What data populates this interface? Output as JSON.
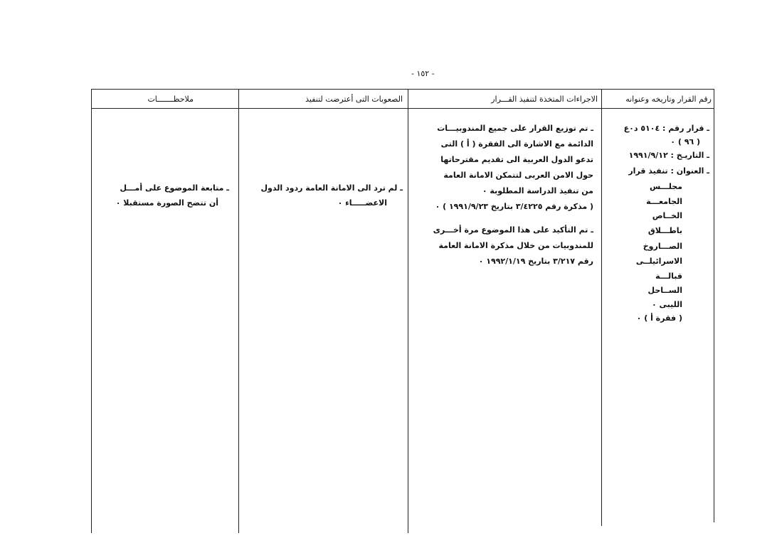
{
  "page_number": "- ١٥٢ -",
  "table": {
    "headers": [
      "رقم القرار وتاريخه وعنوانه",
      "الاجراءات المتخذة لتنفيذ القـــرار",
      "الصعوبات التى أعترضت لتنفيذ",
      "ملاحظـــــــات"
    ],
    "decision": [
      "ـ قرار رقم : ٥١٠٤ د٠ع",
      "( ٩٦ ) ٠",
      "ـ التاريـخ : ١٩٩١/٩/١٢",
      "ـ العنوان : تنفيذ قرار",
      "مجلـــس",
      "الجامعـــة",
      "الخــاص",
      "باطـــلاق",
      "الصـــاروخ",
      "الاسرائيلــى",
      "قبالـــة",
      "الســاحل",
      "الليبى ٠",
      "( فقرة أ ) ٠"
    ],
    "actions_1": [
      "ـ تم توزيع القرار على جميع المندوبيـــات",
      "الدائمة مع الاشارة الى الفقرة ( أ ) التى",
      "تدعو الدول العربية الى تقديم مقترحاتها",
      "حول الامن العربى لتتمكن الامانة العامة",
      "من تنفيذ الدراسة المطلوبة ٠",
      "( مذكرة رقم ٣/٤٢٢٥ بتاريخ ١٩٩١/٩/٢٣ ) ٠"
    ],
    "actions_2": [
      "ـ تم التأكيد على هذا الموضوع مرة أخـــرى",
      "للمندوبيات من خلال مذكرة الامانة العامة",
      "رقم ٣/٢١٧ بتاريخ ١٩٩٢/١/١٩ ٠"
    ],
    "difficulties": [
      "ـ لم ترد الى الامانة العامة ردود الدول",
      "الاعضـــــاء ٠"
    ],
    "notes": [
      "ـ متابعة الموضوع على أمـــل",
      "أن تتضح الصورة مستقبلا ٠"
    ]
  }
}
